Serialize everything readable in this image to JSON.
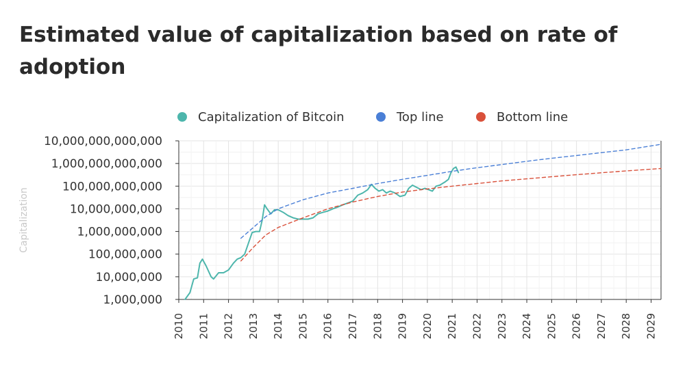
{
  "title": "Estimated value of capitalization based on rate of adoption",
  "chart_data": {
    "type": "line",
    "title": "Estimated value of capitalization based on rate of adoption",
    "xlabel": "",
    "ylabel": "Capitalization",
    "y_scale": "log",
    "xlim": [
      2010,
      2029.4
    ],
    "ylim": [
      1000000,
      10000000000000
    ],
    "x_ticks": [
      "2010",
      "2011",
      "2012",
      "2013",
      "2014",
      "2015",
      "2016",
      "2017",
      "2018",
      "2019",
      "2020",
      "2021",
      "2022",
      "2023",
      "2024",
      "2025",
      "2026",
      "2027",
      "2028",
      "2029"
    ],
    "y_ticks": [
      {
        "value": 1000000,
        "label": "1,000,000"
      },
      {
        "value": 10000000,
        "label": "10,000,000"
      },
      {
        "value": 100000000,
        "label": "100,000,000"
      },
      {
        "value": 1000000000,
        "label": "1,000,000,000"
      },
      {
        "value": 10000000000,
        "label": "10,000,000,000"
      },
      {
        "value": 100000000000,
        "label": "100,000,000,000"
      },
      {
        "value": 1000000000000,
        "label": "1,000,000,000,000"
      },
      {
        "value": 10000000000000,
        "label": "10,000,000,000,000"
      }
    ],
    "grid": true,
    "legend_position": "top",
    "series": [
      {
        "name": "Capitalization of Bitcoin",
        "color": "#4db6ac",
        "style": "solid",
        "points": [
          [
            2010.25,
            1000000
          ],
          [
            2010.45,
            2000000
          ],
          [
            2010.6,
            8000000
          ],
          [
            2010.75,
            9000000
          ],
          [
            2010.85,
            40000000
          ],
          [
            2010.95,
            60000000
          ],
          [
            2011.1,
            30000000
          ],
          [
            2011.3,
            10000000
          ],
          [
            2011.4,
            8000000
          ],
          [
            2011.6,
            15000000
          ],
          [
            2011.8,
            15000000
          ],
          [
            2012.0,
            20000000
          ],
          [
            2012.2,
            40000000
          ],
          [
            2012.35,
            60000000
          ],
          [
            2012.5,
            70000000
          ],
          [
            2012.65,
            100000000
          ],
          [
            2012.8,
            300000000
          ],
          [
            2012.95,
            900000000
          ],
          [
            2013.1,
            1000000000
          ],
          [
            2013.25,
            1000000000
          ],
          [
            2013.35,
            3000000000
          ],
          [
            2013.45,
            15000000000
          ],
          [
            2013.55,
            10000000000
          ],
          [
            2013.7,
            6000000000
          ],
          [
            2013.85,
            9000000000
          ],
          [
            2014.0,
            9000000000
          ],
          [
            2014.2,
            7000000000
          ],
          [
            2014.4,
            5000000000
          ],
          [
            2014.6,
            4000000000
          ],
          [
            2014.8,
            3500000000
          ],
          [
            2015.0,
            3500000000
          ],
          [
            2015.2,
            3500000000
          ],
          [
            2015.4,
            4000000000
          ],
          [
            2015.6,
            6000000000
          ],
          [
            2015.8,
            7000000000
          ],
          [
            2016.0,
            8000000000
          ],
          [
            2016.2,
            10000000000
          ],
          [
            2016.4,
            12000000000
          ],
          [
            2016.6,
            15000000000
          ],
          [
            2016.8,
            18000000000
          ],
          [
            2017.0,
            22000000000
          ],
          [
            2017.2,
            40000000000
          ],
          [
            2017.4,
            50000000000
          ],
          [
            2017.6,
            70000000000
          ],
          [
            2017.75,
            120000000000
          ],
          [
            2017.9,
            80000000000
          ],
          [
            2018.05,
            60000000000
          ],
          [
            2018.2,
            70000000000
          ],
          [
            2018.35,
            50000000000
          ],
          [
            2018.5,
            60000000000
          ],
          [
            2018.7,
            50000000000
          ],
          [
            2018.9,
            35000000000
          ],
          [
            2019.1,
            40000000000
          ],
          [
            2019.25,
            80000000000
          ],
          [
            2019.4,
            110000000000
          ],
          [
            2019.55,
            90000000000
          ],
          [
            2019.75,
            70000000000
          ],
          [
            2019.9,
            80000000000
          ],
          [
            2020.05,
            70000000000
          ],
          [
            2020.2,
            60000000000
          ],
          [
            2020.35,
            100000000000
          ],
          [
            2020.5,
            110000000000
          ],
          [
            2020.7,
            150000000000
          ],
          [
            2020.85,
            200000000000
          ],
          [
            2020.95,
            400000000000
          ],
          [
            2021.05,
            600000000000
          ],
          [
            2021.15,
            700000000000
          ],
          [
            2021.25,
            400000000000
          ]
        ]
      },
      {
        "name": "Top line",
        "color": "#4a7fd6",
        "style": "dashed",
        "points": [
          [
            2012.5,
            500000000
          ],
          [
            2013.0,
            1500000000
          ],
          [
            2013.5,
            4500000000
          ],
          [
            2014.0,
            10000000000
          ],
          [
            2014.5,
            16000000000
          ],
          [
            2015.0,
            25000000000
          ],
          [
            2016.0,
            50000000000
          ],
          [
            2017.0,
            80000000000
          ],
          [
            2018.0,
            130000000000
          ],
          [
            2019.0,
            200000000000
          ],
          [
            2020.0,
            300000000000
          ],
          [
            2021.0,
            450000000000
          ],
          [
            2022.0,
            650000000000
          ],
          [
            2023.0,
            900000000000
          ],
          [
            2024.0,
            1250000000000
          ],
          [
            2025.0,
            1700000000000
          ],
          [
            2026.0,
            2250000000000
          ],
          [
            2027.0,
            3000000000000
          ],
          [
            2028.0,
            4000000000000
          ],
          [
            2029.4,
            7000000000000
          ]
        ]
      },
      {
        "name": "Bottom line",
        "color": "#d9503a",
        "style": "dashed",
        "points": [
          [
            2012.5,
            50000000
          ],
          [
            2013.0,
            200000000
          ],
          [
            2013.5,
            700000000
          ],
          [
            2014.0,
            1500000000
          ],
          [
            2015.0,
            4000000000
          ],
          [
            2016.0,
            10000000000
          ],
          [
            2017.0,
            20000000000
          ],
          [
            2018.0,
            35000000000
          ],
          [
            2019.0,
            55000000000
          ],
          [
            2020.0,
            75000000000
          ],
          [
            2021.0,
            100000000000
          ],
          [
            2022.0,
            130000000000
          ],
          [
            2023.0,
            170000000000
          ],
          [
            2024.0,
            210000000000
          ],
          [
            2025.0,
            260000000000
          ],
          [
            2026.0,
            320000000000
          ],
          [
            2027.0,
            390000000000
          ],
          [
            2028.0,
            470000000000
          ],
          [
            2029.4,
            600000000000
          ]
        ]
      }
    ]
  }
}
